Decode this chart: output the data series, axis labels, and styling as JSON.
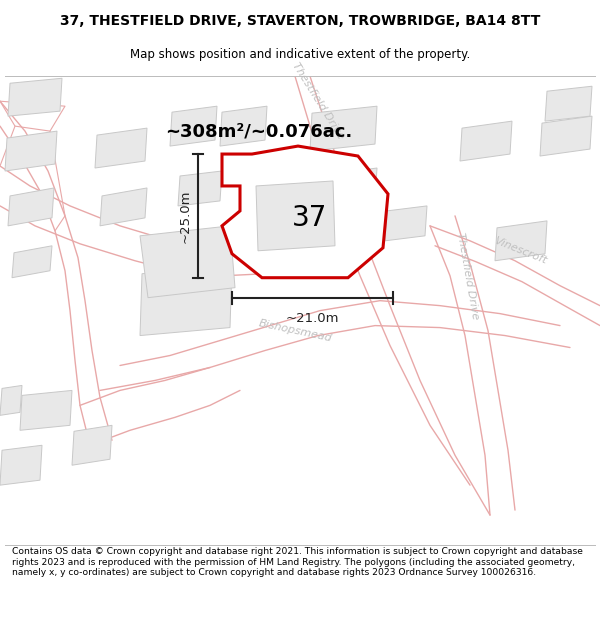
{
  "title_line1": "37, THESTFIELD DRIVE, STAVERTON, TROWBRIDGE, BA14 8TT",
  "title_line2": "Map shows position and indicative extent of the property.",
  "area_text": "~308m²/~0.076ac.",
  "number_label": "37",
  "dim_horizontal": "~21.0m",
  "dim_vertical": "~25.0m",
  "footer_text": "Contains OS data © Crown copyright and database right 2021. This information is subject to Crown copyright and database rights 2023 and is reproduced with the permission of HM Land Registry. The polygons (including the associated geometry, namely x, y co-ordinates) are subject to Crown copyright and database rights 2023 Ordnance Survey 100026316.",
  "map_bg": "#f5f5f5",
  "road_line_color": "#e8a8a8",
  "building_fill": "#e8e8e8",
  "building_edge": "#c8c8c8",
  "plot_outline_color": "#cc0000",
  "street_label_color": "#c0c0c0",
  "dim_color": "#222222"
}
